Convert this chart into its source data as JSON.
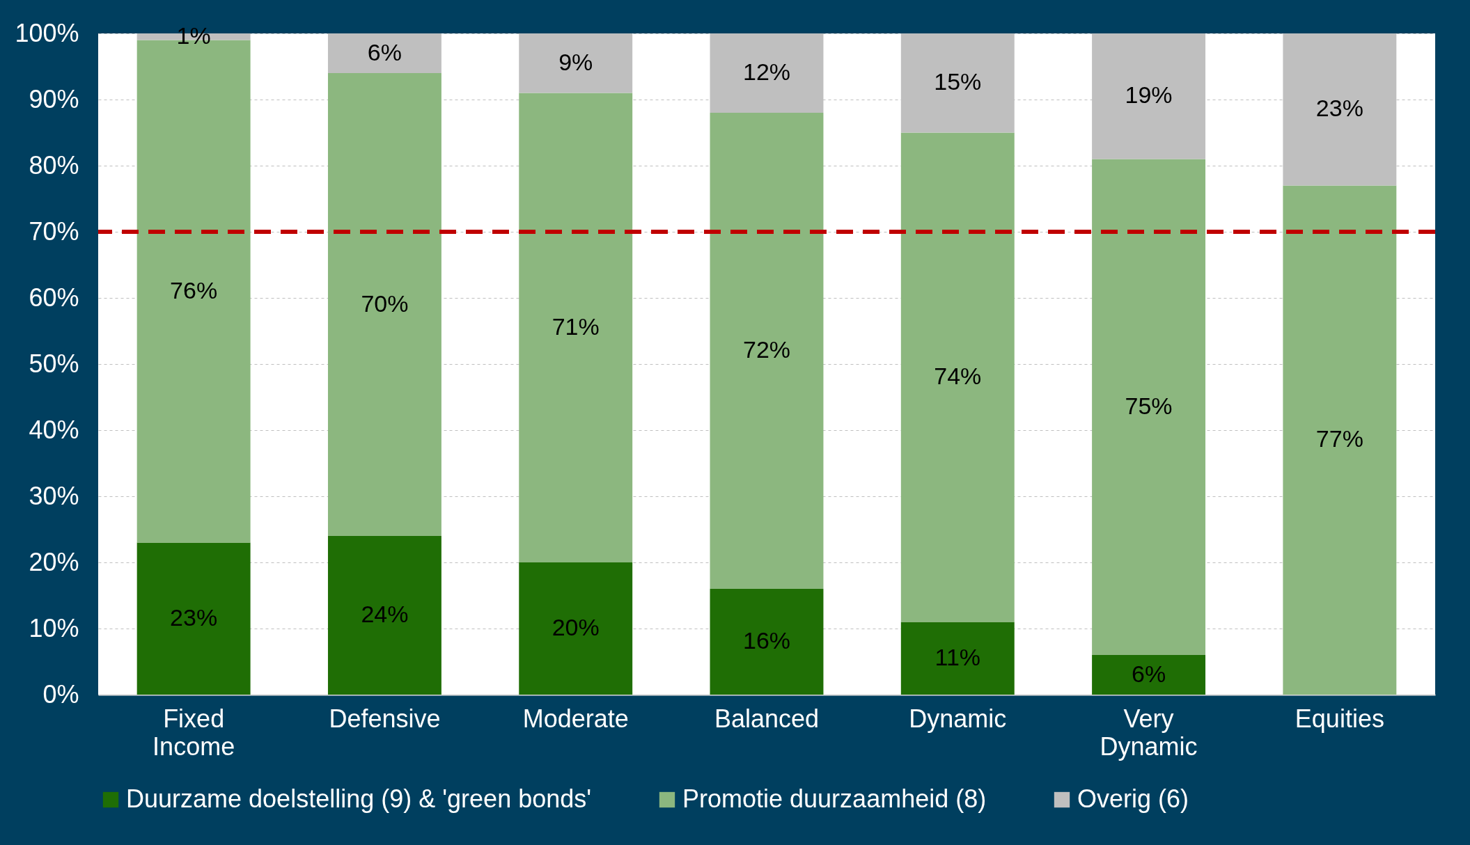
{
  "chart_data": {
    "type": "bar",
    "stacked": true,
    "categories": [
      "Fixed Income",
      "Defensive",
      "Moderate",
      "Balanced",
      "Dynamic",
      "Very Dynamic",
      "Equities"
    ],
    "series": [
      {
        "name": "Duurzame doelstelling (9) & 'green bonds'",
        "color": "#1f6e05",
        "values": [
          23,
          24,
          20,
          16,
          11,
          6,
          0
        ],
        "value_labels": [
          "23%",
          "24%",
          "20%",
          "16%",
          "11%",
          "6%",
          null
        ]
      },
      {
        "name": "Promotie duurzaamheid (8)",
        "color": "#8cb77f",
        "values": [
          76,
          70,
          71,
          72,
          74,
          75,
          77
        ],
        "value_labels": [
          "76%",
          "70%",
          "71%",
          "72%",
          "74%",
          "75%",
          "77%"
        ]
      },
      {
        "name": "Overig (6)",
        "color": "#bfbfbf",
        "values": [
          1,
          6,
          9,
          12,
          15,
          19,
          23
        ],
        "value_labels": [
          "1%",
          "6%",
          "9%",
          "12%",
          "15%",
          "19%",
          "23%"
        ]
      }
    ],
    "ylim": [
      0,
      100
    ],
    "yticks": [
      {
        "value": 0,
        "label": "0%"
      },
      {
        "value": 10,
        "label": "10%"
      },
      {
        "value": 20,
        "label": "20%"
      },
      {
        "value": 30,
        "label": "30%"
      },
      {
        "value": 40,
        "label": "40%"
      },
      {
        "value": 50,
        "label": "50%"
      },
      {
        "value": 60,
        "label": "60%"
      },
      {
        "value": 70,
        "label": "70%"
      },
      {
        "value": 80,
        "label": "80%"
      },
      {
        "value": 90,
        "label": "90%"
      },
      {
        "value": 100,
        "label": "100%"
      }
    ],
    "grid": "y",
    "legend": "bottom",
    "ref_lines": [
      {
        "axis": "y",
        "value": 70,
        "color": "#c00000",
        "line_style": "dashed"
      }
    ]
  }
}
